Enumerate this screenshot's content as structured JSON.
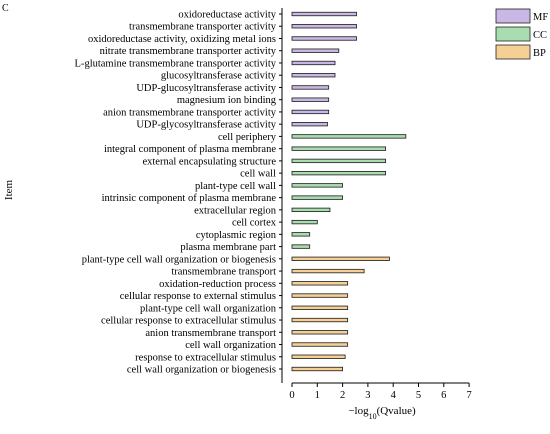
{
  "panel_label": "C",
  "chart_data": {
    "type": "bar",
    "orientation": "horizontal",
    "ylabel": "Item",
    "xlabel": "−log",
    "xlabel_sub": "10",
    "xlabel_suffix": "(Qvalue)",
    "xlim": [
      0,
      7
    ],
    "xticks": [
      "0",
      "1",
      "2",
      "3",
      "4",
      "5",
      "6",
      "7"
    ],
    "grid": false,
    "legend_position": "top-right",
    "colors": {
      "MF": "#c9b8e6",
      "CC": "#a9dcae",
      "BP": "#f6cf95"
    },
    "legend": [
      "MF",
      "CC",
      "BP"
    ],
    "categories": [
      "oxidoreductase activity",
      "transmembrane transporter activity",
      "oxidoreductase activity, oxidizing metal ions",
      "nitrate transmembrane transporter activity",
      "L-glutamine transmembrane transporter activity",
      "glucosyltransferase activity",
      "UDP-glucosyltransferase activity",
      "magnesium ion binding",
      "anion transmembrane transporter activity",
      "UDP-glycosyltransferase activity",
      "cell periphery",
      "integral component of plasma membrane",
      "external encapsulating structure",
      "cell wall",
      "plant-type cell wall",
      "intrinsic component of plasma membrane",
      "extracellular region",
      "cell cortex",
      "cytoplasmic region",
      "plasma membrane part",
      "plant-type cell wall organization or biogenesis",
      "transmembrane transport",
      "oxidation-reduction process",
      "cellular response to external stimulus",
      "plant-type cell wall organization",
      "cellular response to extracellular stimulus",
      "anion transmembrane transport",
      "cell wall organization",
      "response to extracellular stimulus",
      "cell wall organization or biogenesis"
    ],
    "values": [
      2.55,
      2.55,
      2.55,
      1.85,
      1.7,
      1.7,
      1.45,
      1.45,
      1.45,
      1.4,
      4.5,
      3.7,
      3.7,
      3.7,
      2.0,
      2.0,
      1.5,
      1.0,
      0.7,
      0.7,
      3.85,
      2.85,
      2.2,
      2.2,
      2.2,
      2.2,
      2.2,
      2.2,
      2.1,
      2.0
    ],
    "groups": [
      "MF",
      "MF",
      "MF",
      "MF",
      "MF",
      "MF",
      "MF",
      "MF",
      "MF",
      "MF",
      "CC",
      "CC",
      "CC",
      "CC",
      "CC",
      "CC",
      "CC",
      "CC",
      "CC",
      "CC",
      "BP",
      "BP",
      "BP",
      "BP",
      "BP",
      "BP",
      "BP",
      "BP",
      "BP",
      "BP"
    ]
  }
}
